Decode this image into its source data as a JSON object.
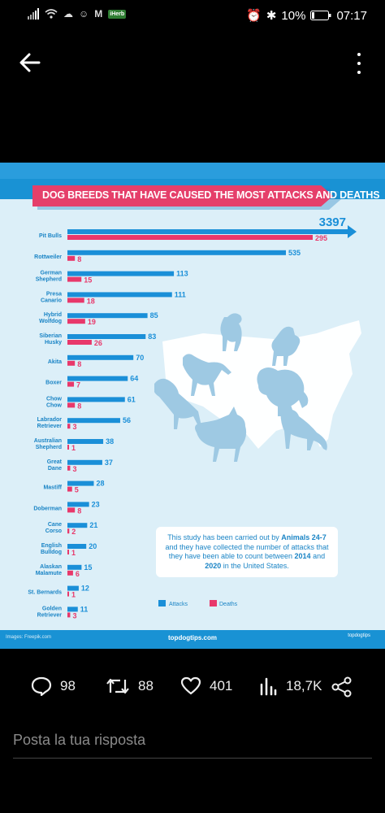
{
  "status_bar": {
    "network": "4G",
    "badge": "iHerb",
    "battery": "10%",
    "time": "07:17"
  },
  "infographic": {
    "title": "DOG BREEDS THAT HAVE CAUSED THE MOST ATTACKS AND DEATHS",
    "note_parts": [
      "This study has been carried out by ",
      "Animals 24-7",
      " and they have collected the number of attacks that they have been able to count between ",
      "2014",
      " and ",
      "2020",
      " in the United States."
    ],
    "credit": "Images: Freepik.com",
    "site": "topdogtips.com",
    "logo_text": "topdogtips",
    "colors": {
      "attacks": "#1a8fd8",
      "deaths": "#e8386b",
      "background": "#dceff8",
      "header": "#1992d4"
    }
  },
  "chart_data": {
    "type": "bar",
    "categories": [
      "Pit Bulls",
      "Rottweiler",
      "German Shepherd",
      "Presa Canario",
      "Hybrid Wolfdog",
      "Siberian Husky",
      "Akita",
      "Boxer",
      "Chow Chow",
      "Labrador Retriever",
      "Australian Shepherd",
      "Great Dane",
      "Mastiff",
      "Doberman",
      "Cane Corso",
      "English Bulldog",
      "Alaskan Malamute",
      "St. Bernards",
      "Golden Retriever"
    ],
    "series": [
      {
        "name": "Attacks",
        "values": [
          3397,
          535,
          113,
          111,
          85,
          83,
          70,
          64,
          61,
          56,
          38,
          37,
          28,
          23,
          21,
          20,
          15,
          12,
          11
        ]
      },
      {
        "name": "Deaths",
        "values": [
          295,
          8,
          15,
          18,
          19,
          26,
          8,
          7,
          8,
          3,
          1,
          3,
          5,
          8,
          2,
          1,
          6,
          1,
          3
        ]
      }
    ],
    "axis_scale": "non-linear",
    "legend": {
      "position": "bottom-right",
      "entries": [
        "Attacks",
        "Deaths"
      ]
    }
  },
  "actions": {
    "replies": "98",
    "retweets": "88",
    "likes": "401",
    "views": "18,7K"
  },
  "reply_placeholder": "Posta la tua risposta"
}
